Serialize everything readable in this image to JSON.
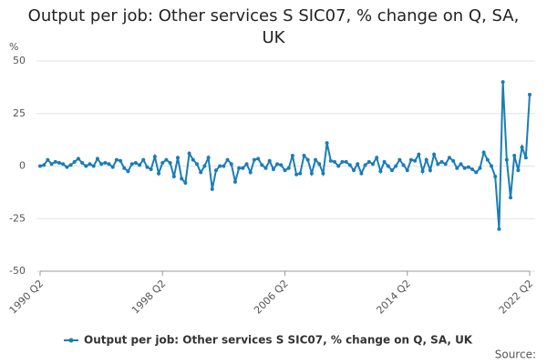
{
  "chart_data": {
    "type": "line",
    "title": "Output per job: Other services S SIC07, % change on Q, SA, UK",
    "y_label": "%",
    "source": "Source:",
    "categories": [
      "1990 Q2",
      null,
      null,
      null,
      null,
      null,
      null,
      null,
      null,
      null,
      null,
      null,
      null,
      null,
      null,
      null,
      null,
      null,
      null,
      null,
      null,
      null,
      null,
      null,
      null,
      null,
      null,
      null,
      null,
      null,
      null,
      null,
      "1998 Q2",
      null,
      null,
      null,
      null,
      null,
      null,
      null,
      null,
      null,
      null,
      null,
      null,
      null,
      null,
      null,
      null,
      null,
      null,
      null,
      null,
      null,
      null,
      null,
      null,
      null,
      null,
      null,
      null,
      null,
      null,
      null,
      "2006 Q2",
      null,
      null,
      null,
      null,
      null,
      null,
      null,
      null,
      null,
      null,
      null,
      null,
      null,
      null,
      null,
      null,
      null,
      null,
      null,
      null,
      null,
      null,
      null,
      null,
      null,
      null,
      null,
      null,
      null,
      null,
      null,
      "2014 Q2",
      null,
      null,
      null,
      null,
      null,
      null,
      null,
      null,
      null,
      null,
      null,
      null,
      null,
      null,
      null,
      null,
      null,
      null,
      null,
      null,
      null,
      null,
      null,
      null,
      null,
      null,
      null,
      null,
      null,
      null,
      null,
      "2022 Q2"
    ],
    "series": [
      {
        "name": "Output per job: Other services S SIC07, % change on Q, SA, UK",
        "color": "#1a7db6",
        "values": [
          0,
          0.5,
          3,
          1,
          2,
          1.5,
          1,
          -0.5,
          0.5,
          2,
          3.5,
          1.5,
          0,
          1,
          0,
          3.5,
          1,
          1.5,
          1,
          -0.5,
          3,
          2.5,
          -1,
          -2.5,
          1,
          1.5,
          0.5,
          3,
          -0.5,
          -1.5,
          4.5,
          -3.5,
          1.5,
          3,
          1.5,
          -5,
          4,
          -6,
          -8,
          6,
          3,
          1,
          -3,
          0,
          4,
          -11,
          -2,
          0,
          0,
          3,
          1,
          -7.5,
          -1,
          -1,
          1,
          -3,
          3,
          3.5,
          0.5,
          -1,
          2.5,
          -1.5,
          1,
          0.5,
          -2,
          -1,
          5,
          -4,
          -3.5,
          5,
          3,
          -3.5,
          3,
          1,
          -3.5,
          11,
          2.5,
          2,
          0,
          2,
          2,
          0.5,
          -2,
          1,
          -3.5,
          0.5,
          2,
          1,
          4,
          -2.5,
          2,
          0,
          -2,
          0,
          3,
          0.5,
          -2,
          3,
          2.5,
          5.5,
          -2.5,
          3,
          -2,
          5.5,
          1,
          2,
          1,
          4,
          2.5,
          -1,
          1,
          -1,
          -0.5,
          -1.5,
          -3,
          -1,
          6.5,
          3,
          0,
          -5,
          -30,
          40,
          3,
          -15,
          5,
          -2,
          9,
          4,
          34
        ]
      }
    ],
    "ylim": [
      -50,
      50
    ],
    "yticks": [
      -50,
      -25,
      0,
      25,
      50
    ],
    "grid": true
  }
}
